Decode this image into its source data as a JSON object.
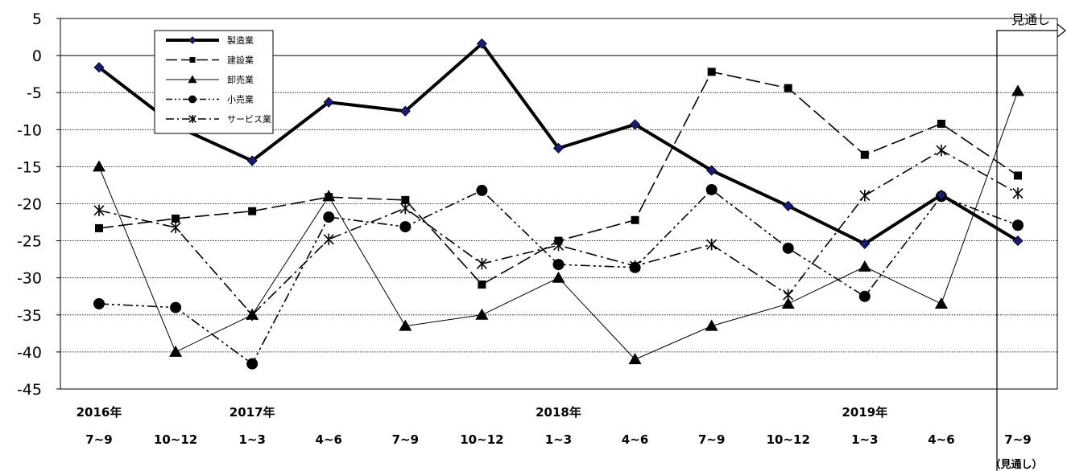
{
  "chart_data": {
    "type": "line",
    "ylim": [
      -45,
      5
    ],
    "yticks": [
      5,
      0,
      -5,
      -10,
      -15,
      -20,
      -25,
      -30,
      -35,
      -40,
      -45
    ],
    "grid": "horizontal dotted",
    "legend_placement": "top-left",
    "categories": [
      "7~9",
      "10~12",
      "1~3",
      "4~6",
      "7~9",
      "10~12",
      "1~3",
      "4~6",
      "7~9",
      "10~12",
      "1~3",
      "4~6",
      "7~9"
    ],
    "year_labels": [
      {
        "index": 0,
        "text": "2016年"
      },
      {
        "index": 2,
        "text": "2017年"
      },
      {
        "index": 6,
        "text": "2018年"
      },
      {
        "index": 10,
        "text": "2019年"
      }
    ],
    "forecast": {
      "label": "見通し",
      "note": "（見通し）"
    },
    "series": [
      {
        "name": "製造業",
        "marker": "diamond",
        "dash": "solid",
        "width": 4,
        "values": [
          -1.6,
          -9.5,
          -14.2,
          -6.3,
          -7.5,
          1.6,
          -12.5,
          -9.3,
          -15.5,
          -20.3,
          -25.4,
          -18.8,
          -25.0
        ]
      },
      {
        "name": "建設業",
        "marker": "square",
        "dash": "long-dash",
        "width": 1.6,
        "values": [
          -23.3,
          -22.0,
          -21.0,
          -19.1,
          -19.5,
          -30.9,
          -25.0,
          -22.2,
          -2.2,
          -4.4,
          -13.4,
          -9.2,
          -16.2
        ]
      },
      {
        "name": "卸売業",
        "marker": "triangle",
        "dash": "solid",
        "width": 1,
        "values": [
          -15.0,
          -40.0,
          -35.0,
          -19.0,
          -36.5,
          -35.0,
          -30.0,
          -41.0,
          -36.5,
          -33.5,
          -28.5,
          -33.5,
          -4.8
        ]
      },
      {
        "name": "小売業",
        "marker": "circle",
        "dash": "dash-dot-dot",
        "width": 1.6,
        "values": [
          -33.5,
          -34.0,
          -41.6,
          -21.8,
          -23.1,
          -18.2,
          -28.2,
          -28.6,
          -18.1,
          -26.0,
          -32.5,
          -19.0,
          -22.9
        ]
      },
      {
        "name": "サービス業",
        "marker": "star",
        "dash": "dash-dot",
        "width": 1.6,
        "values": [
          -20.9,
          -23.2,
          -35.0,
          -24.8,
          -20.6,
          -28.1,
          -25.6,
          -28.4,
          -25.5,
          -32.3,
          -18.9,
          -12.8,
          -18.6
        ]
      }
    ]
  }
}
